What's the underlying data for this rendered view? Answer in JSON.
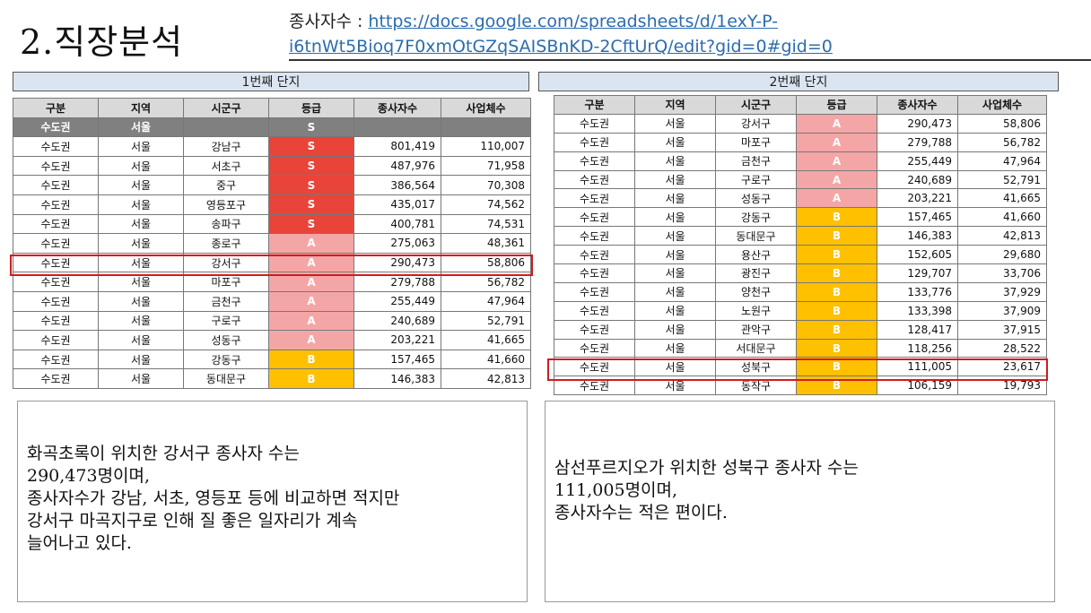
{
  "slide": {
    "title": "2.직장분석",
    "source_label": "종사자수 : ",
    "source_url_line1": "https://docs.google.com/spreadsheets/d/1exY-P-",
    "source_url_line2": "i6tnWt5Bioq7F0xmOtGZqSAISBnKD-2CftUrQ/edit?gid=0#gid=0"
  },
  "table1": {
    "caption": "1번째 단지",
    "headers": [
      "구분",
      "지역",
      "시군구",
      "등급",
      "종사자수",
      "사업체수"
    ],
    "group_row": [
      "수도권",
      "서울",
      "",
      "S",
      "",
      ""
    ],
    "rows": [
      [
        "수도권",
        "서울",
        "강남구",
        "S",
        "801,419",
        "110,007"
      ],
      [
        "수도권",
        "서울",
        "서초구",
        "S",
        "487,976",
        "71,958"
      ],
      [
        "수도권",
        "서울",
        "중구",
        "S",
        "386,564",
        "70,308"
      ],
      [
        "수도권",
        "서울",
        "영등포구",
        "S",
        "435,017",
        "74,562"
      ],
      [
        "수도권",
        "서울",
        "송파구",
        "S",
        "400,781",
        "74,531"
      ],
      [
        "수도권",
        "서울",
        "종로구",
        "A",
        "275,063",
        "48,361"
      ],
      [
        "수도권",
        "서울",
        "강서구",
        "A",
        "290,473",
        "58,806"
      ],
      [
        "수도권",
        "서울",
        "마포구",
        "A",
        "279,788",
        "56,782"
      ],
      [
        "수도권",
        "서울",
        "금천구",
        "A",
        "255,449",
        "47,964"
      ],
      [
        "수도권",
        "서울",
        "구로구",
        "A",
        "240,689",
        "52,791"
      ],
      [
        "수도권",
        "서울",
        "성동구",
        "A",
        "203,221",
        "41,665"
      ],
      [
        "수도권",
        "서울",
        "강동구",
        "B",
        "157,465",
        "41,660"
      ],
      [
        "수도권",
        "서울",
        "동대문구",
        "B",
        "146,383",
        "42,813"
      ]
    ]
  },
  "table2": {
    "caption": "2번째 단지",
    "headers": [
      "구분",
      "지역",
      "시군구",
      "등급",
      "종사자수",
      "사업체수"
    ],
    "rows": [
      [
        "수도권",
        "서울",
        "강서구",
        "A",
        "290,473",
        "58,806"
      ],
      [
        "수도권",
        "서울",
        "마포구",
        "A",
        "279,788",
        "56,782"
      ],
      [
        "수도권",
        "서울",
        "금천구",
        "A",
        "255,449",
        "47,964"
      ],
      [
        "수도권",
        "서울",
        "구로구",
        "A",
        "240,689",
        "52,791"
      ],
      [
        "수도권",
        "서울",
        "성동구",
        "A",
        "203,221",
        "41,665"
      ],
      [
        "수도권",
        "서울",
        "강동구",
        "B",
        "157,465",
        "41,660"
      ],
      [
        "수도권",
        "서울",
        "동대문구",
        "B",
        "146,383",
        "42,813"
      ],
      [
        "수도권",
        "서울",
        "용산구",
        "B",
        "152,605",
        "29,680"
      ],
      [
        "수도권",
        "서울",
        "광진구",
        "B",
        "129,707",
        "33,706"
      ],
      [
        "수도권",
        "서울",
        "양천구",
        "B",
        "133,776",
        "37,929"
      ],
      [
        "수도권",
        "서울",
        "노원구",
        "B",
        "133,398",
        "37,909"
      ],
      [
        "수도권",
        "서울",
        "관악구",
        "B",
        "128,417",
        "37,915"
      ],
      [
        "수도권",
        "서울",
        "서대문구",
        "B",
        "118,256",
        "28,522"
      ],
      [
        "수도권",
        "서울",
        "성북구",
        "B",
        "111,005",
        "23,617"
      ],
      [
        "수도권",
        "서울",
        "동작구",
        "B",
        "106,159",
        "19,793"
      ]
    ]
  },
  "note1": {
    "lines": [
      "화곡초록이 위치한 강서구 종사자 수는",
      "290,473명이며,",
      "종사자수가 강남, 서초, 영등포 등에 비교하면 적지만",
      "강서구 마곡지구로 인해 질 좋은 일자리가 계속",
      "늘어나고 있다."
    ]
  },
  "note2": {
    "lines": [
      "삼선푸르지오가 위치한 성북구 종사자 수는",
      "111,005명이며,",
      "종사자수는 적은 편이다."
    ]
  },
  "colors": {
    "grade_S": "#e8443a",
    "grade_A": "#f4a6a6",
    "grade_B": "#ffc000",
    "highlight": "#d01c1c",
    "caption_bg": "#dbe5f1"
  }
}
